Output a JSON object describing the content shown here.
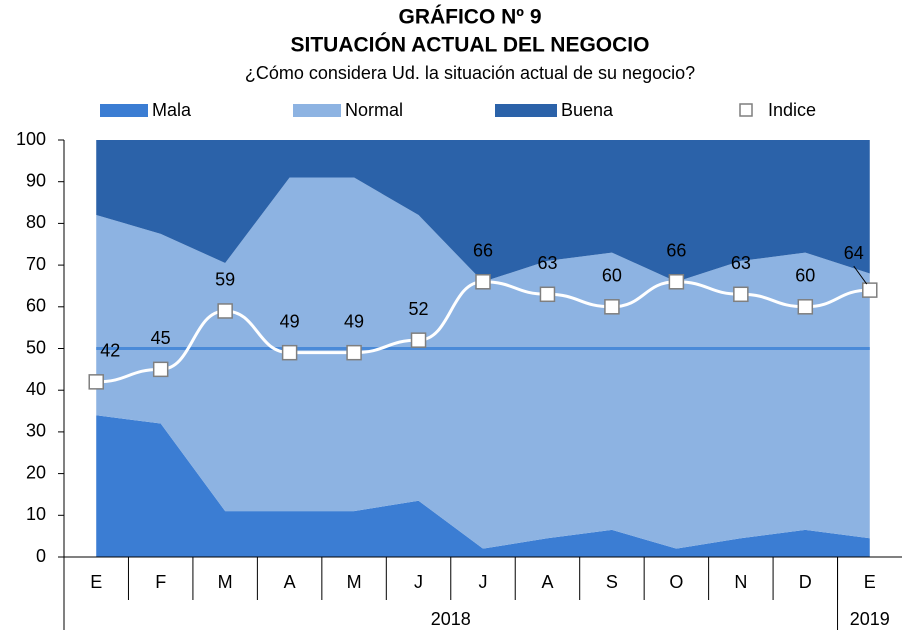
{
  "chart_data": {
    "type": "area",
    "title": "GRÁFICO Nº 9",
    "subtitle": "SITUACIÓN ACTUAL DEL NEGOCIO",
    "question": "¿Cómo considera Ud. la situación actual de su negocio?",
    "categories": [
      "E",
      "F",
      "M",
      "A",
      "M",
      "J",
      "J",
      "A",
      "S",
      "O",
      "N",
      "D",
      "E"
    ],
    "x_groups": [
      {
        "label": "2018",
        "span": 12
      },
      {
        "label": "2019",
        "span": 1
      }
    ],
    "series": [
      {
        "name": "Mala",
        "color": "#3b7dd3",
        "values": [
          34,
          32,
          11,
          11,
          11,
          13.5,
          2,
          4.5,
          6.5,
          2,
          4.5,
          6.5,
          4.5
        ]
      },
      {
        "name": "Normal",
        "color": "#8db3e2",
        "values": [
          48,
          45.5,
          59.5,
          80,
          80,
          68.5,
          64,
          66.5,
          66.5,
          64,
          66.5,
          66.5,
          63.5
        ]
      },
      {
        "name": "Buena",
        "color": "#2b62a9",
        "values": [
          18,
          22.5,
          29.5,
          9,
          9,
          18,
          34,
          29,
          27,
          34,
          29,
          27,
          32
        ]
      },
      {
        "name": "Indice",
        "type": "line",
        "color": "#ffffff",
        "values": [
          42,
          45,
          59,
          49,
          49,
          52,
          66,
          63,
          60,
          66,
          63,
          60,
          64
        ]
      }
    ],
    "reference_line": 50,
    "ylim": [
      0,
      100
    ],
    "yticks": [
      0,
      10,
      20,
      30,
      40,
      50,
      60,
      70,
      80,
      90,
      100
    ]
  }
}
